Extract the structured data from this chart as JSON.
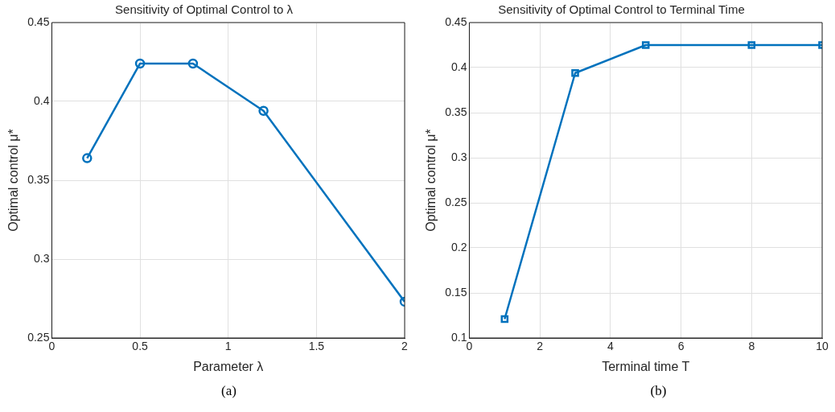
{
  "chart_data": [
    {
      "type": "line",
      "title": "Sensitivity of Optimal Control to λ",
      "xlabel": "Parameter λ",
      "ylabel": "Optimal control μ*",
      "x": [
        0.2,
        0.5,
        0.8,
        1.2,
        2
      ],
      "series": [
        {
          "color": "#0072bd",
          "values": [
            0.364,
            0.424,
            0.424,
            0.394,
            0.273
          ]
        }
      ],
      "xlim": [
        0,
        2
      ],
      "xticks": [
        0,
        0.5,
        1,
        1.5,
        2
      ],
      "ylim": [
        0.25,
        0.45
      ],
      "yticks": [
        0.25,
        0.3,
        0.35,
        0.4,
        0.45
      ],
      "grid": true,
      "legend": false,
      "marker": "circle",
      "line_style": "solid",
      "annotations": [
        "(a)"
      ]
    },
    {
      "type": "line",
      "title": "Sensitivity of Optimal Control to Terminal Time",
      "xlabel": "Terminal time T",
      "ylabel": "Optimal control μ*",
      "x": [
        1,
        3,
        5,
        8,
        10
      ],
      "series": [
        {
          "color": "#0072bd",
          "values": [
            0.121,
            0.394,
            0.425,
            0.425,
            0.425
          ]
        }
      ],
      "xlim": [
        0,
        10
      ],
      "xticks": [
        0,
        2,
        4,
        6,
        8,
        10
      ],
      "ylim": [
        0.1,
        0.45
      ],
      "yticks": [
        0.1,
        0.15,
        0.2,
        0.25,
        0.3,
        0.35,
        0.4,
        0.45
      ],
      "grid": true,
      "legend": false,
      "marker": "square",
      "line_style": "solid",
      "annotations": [
        "(b)"
      ]
    }
  ]
}
